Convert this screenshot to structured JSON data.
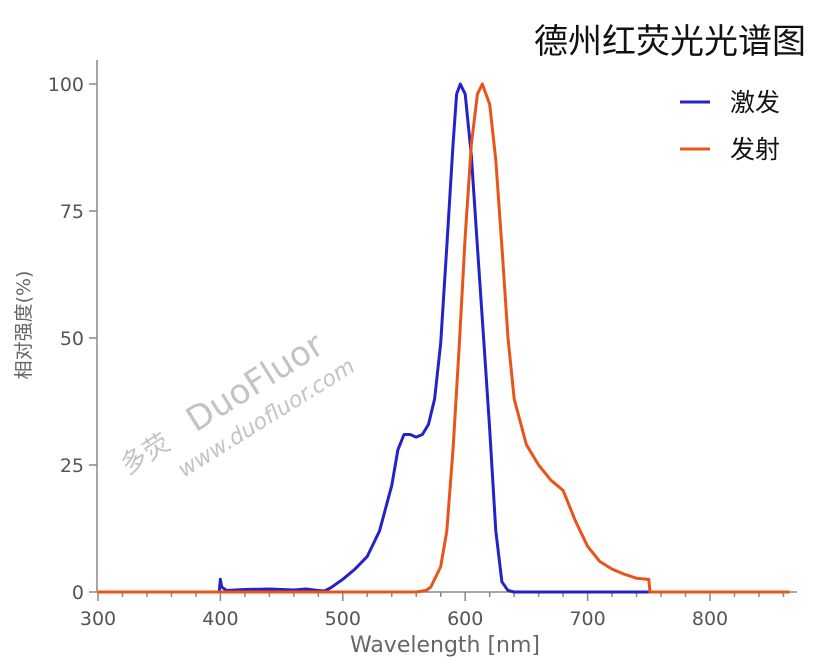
{
  "chart_data": {
    "type": "line",
    "title": "德州红荧光光谱图",
    "xlabel": "Wavelength [nm]",
    "ylabel": "相对强度(%)",
    "xlim": [
      300,
      870
    ],
    "ylim": [
      0,
      100
    ],
    "xticks": [
      300,
      400,
      500,
      600,
      700,
      800
    ],
    "yticks": [
      0,
      25,
      50,
      75,
      100
    ],
    "legend_position": "top-right",
    "grid": false,
    "series": [
      {
        "name": "激发",
        "color": "#2323c8",
        "points": [
          [
            300,
            0
          ],
          [
            399,
            0
          ],
          [
            400,
            2.5
          ],
          [
            401,
            1
          ],
          [
            405,
            0.3
          ],
          [
            420,
            0.5
          ],
          [
            440,
            0.6
          ],
          [
            460,
            0.4
          ],
          [
            470,
            0.6
          ],
          [
            480,
            0.3
          ],
          [
            485,
            0.2
          ],
          [
            490,
            0.8
          ],
          [
            500,
            2.5
          ],
          [
            510,
            4.5
          ],
          [
            520,
            7
          ],
          [
            530,
            12
          ],
          [
            540,
            21
          ],
          [
            545,
            28
          ],
          [
            550,
            31
          ],
          [
            555,
            31
          ],
          [
            560,
            30.5
          ],
          [
            565,
            31
          ],
          [
            570,
            33
          ],
          [
            575,
            38
          ],
          [
            580,
            49
          ],
          [
            585,
            68
          ],
          [
            590,
            88
          ],
          [
            593,
            98
          ],
          [
            596,
            100
          ],
          [
            600,
            98
          ],
          [
            605,
            86
          ],
          [
            610,
            68
          ],
          [
            615,
            50
          ],
          [
            620,
            32
          ],
          [
            625,
            12
          ],
          [
            630,
            2
          ],
          [
            635,
            0.3
          ],
          [
            640,
            0
          ],
          [
            750,
            0
          ]
        ]
      },
      {
        "name": "发射",
        "color": "#e8541a",
        "points": [
          [
            300,
            0
          ],
          [
            560,
            0
          ],
          [
            568,
            0.3
          ],
          [
            572,
            1
          ],
          [
            580,
            5
          ],
          [
            585,
            12
          ],
          [
            590,
            28
          ],
          [
            595,
            48
          ],
          [
            600,
            70
          ],
          [
            605,
            88
          ],
          [
            610,
            98
          ],
          [
            614,
            100
          ],
          [
            620,
            96
          ],
          [
            625,
            85
          ],
          [
            630,
            68
          ],
          [
            635,
            50
          ],
          [
            640,
            38
          ],
          [
            650,
            29
          ],
          [
            660,
            25
          ],
          [
            670,
            22
          ],
          [
            680,
            20
          ],
          [
            690,
            14
          ],
          [
            700,
            9
          ],
          [
            710,
            6
          ],
          [
            720,
            4.5
          ],
          [
            730,
            3.5
          ],
          [
            740,
            2.7
          ],
          [
            748,
            2.5
          ],
          [
            750,
            2.5
          ],
          [
            751,
            0
          ],
          [
            865,
            0
          ]
        ]
      }
    ]
  },
  "watermark": {
    "logo_text": "多荧",
    "brand": "DuoFluor",
    "url": "www.duofluor.com"
  }
}
